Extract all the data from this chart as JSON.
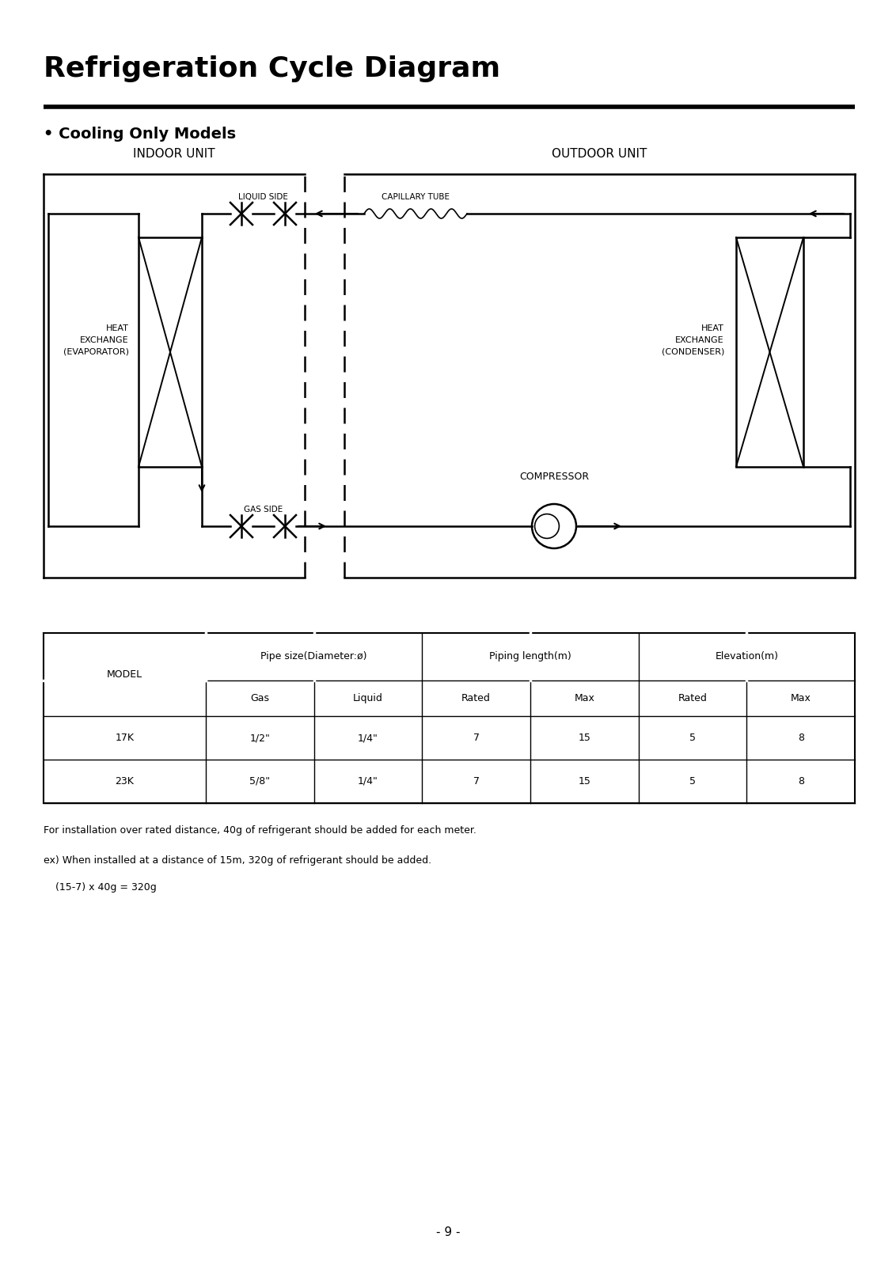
{
  "title": "Refrigeration Cycle Diagram",
  "subtitle": "• Cooling Only Models",
  "indoor_label": "INDOOR UNIT",
  "outdoor_label": "OUTDOOR UNIT",
  "heat_exchange_evap": "HEAT\nEXCHANGE\n(EVAPORATOR)",
  "heat_exchange_cond": "HEAT\nEXCHANGE\n(CONDENSER)",
  "liquid_side_label": "LIQUID SIDE",
  "gas_side_label": "GAS SIDE",
  "capillary_tube_label": "CAPILLARY TUBE",
  "compressor_label": "COMPRESSOR",
  "table_data": [
    [
      "17K",
      "1/2\"",
      "1/4\"",
      "7",
      "15",
      "5",
      "8"
    ],
    [
      "23K",
      "5/8\"",
      "1/4\"",
      "7",
      "15",
      "5",
      "8"
    ]
  ],
  "note1": "For installation over rated distance, 40g of refrigerant should be added for each meter.",
  "note2": "ex) When installed at a distance of 15m, 320g of refrigerant should be added.",
  "note3": "    (15-7) x 40g = 320g",
  "page_number": "- 9 -",
  "bg_color": "#ffffff",
  "line_color": "#000000"
}
